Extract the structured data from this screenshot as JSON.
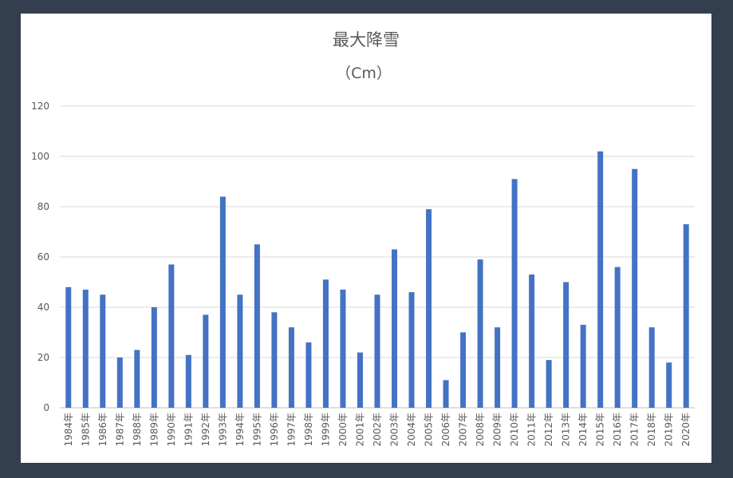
{
  "chart_data": {
    "type": "bar",
    "title": "最大降雪",
    "subtitle": "（Cm）",
    "xlabel": "",
    "ylabel": "",
    "ylim": [
      0,
      120
    ],
    "yticks": [
      0,
      20,
      40,
      60,
      80,
      100,
      120
    ],
    "grid": true,
    "legend": "none",
    "bar_color": "#4472c4",
    "categories": [
      "1984年",
      "1985年",
      "1986年",
      "1987年",
      "1988年",
      "1989年",
      "1990年",
      "1991年",
      "1992年",
      "1993年",
      "1994年",
      "1995年",
      "1996年",
      "1997年",
      "1998年",
      "1999年",
      "2000年",
      "2001年",
      "2002年",
      "2003年",
      "2004年",
      "2005年",
      "2006年",
      "2007年",
      "2008年",
      "2009年",
      "2010年",
      "2011年",
      "2012年",
      "2013年",
      "2014年",
      "2015年",
      "2016年",
      "2017年",
      "2018年",
      "2019年",
      "2020年"
    ],
    "values": [
      48,
      47,
      45,
      20,
      23,
      40,
      57,
      21,
      37,
      84,
      45,
      65,
      38,
      32,
      26,
      51,
      47,
      22,
      45,
      63,
      46,
      79,
      11,
      30,
      59,
      32,
      91,
      53,
      19,
      50,
      33,
      102,
      56,
      95,
      32,
      18,
      73
    ]
  }
}
